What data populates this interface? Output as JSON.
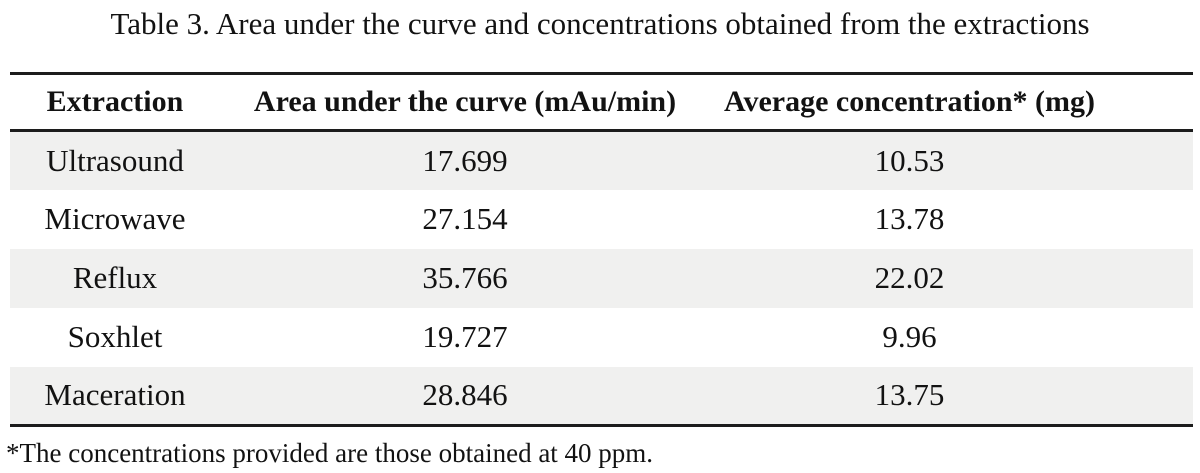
{
  "caption": "Table 3. Area under the curve and concentrations obtained from the extractions",
  "table": {
    "columns": [
      "Extraction",
      "Area under the curve (mAu/min)",
      "Average concentration* (mg)"
    ],
    "rows": [
      [
        "Ultrasound",
        "17.699",
        "10.53"
      ],
      [
        "Microwave",
        "27.154",
        "13.78"
      ],
      [
        "Reflux",
        "35.766",
        "22.02"
      ],
      [
        "Soxhlet",
        "19.727",
        "9.96"
      ],
      [
        "Maceration",
        "28.846",
        "13.75"
      ]
    ]
  },
  "footnote": "*The concentrations provided are those obtained at 40 ppm.",
  "colors": {
    "stripe": "#f0f0ef",
    "rule": "#1c1c1c",
    "text": "#121212",
    "background": "#ffffff"
  }
}
